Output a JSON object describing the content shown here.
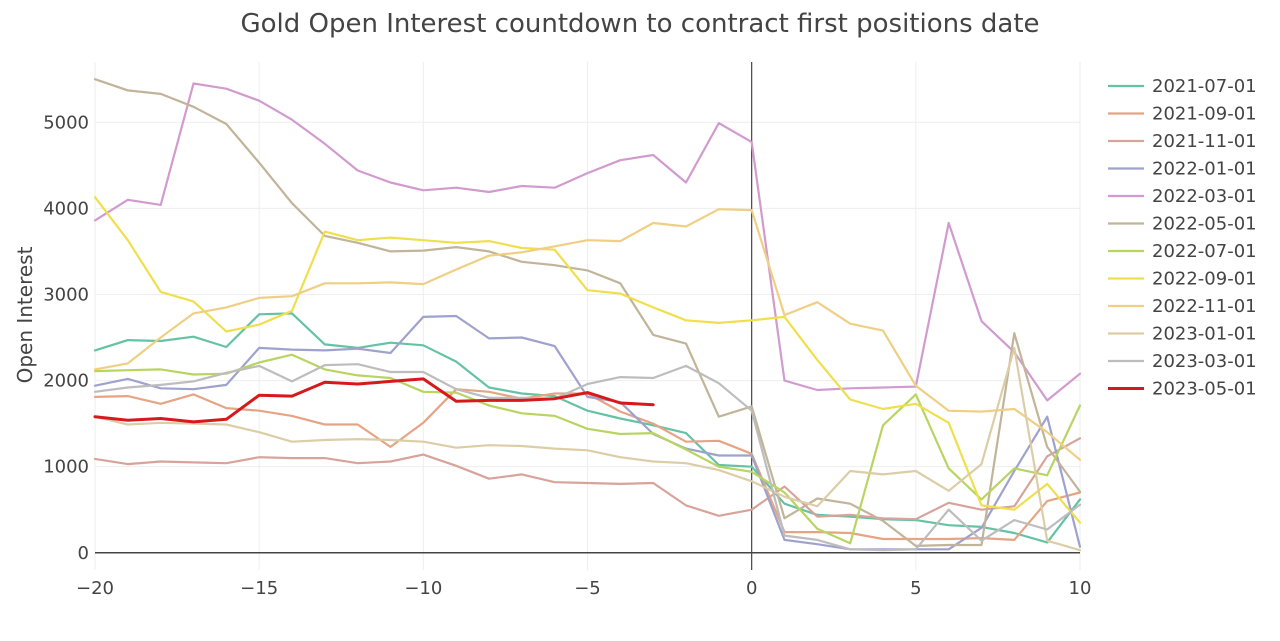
{
  "chart_data": {
    "type": "line",
    "title": "Gold Open Interest countdown to contract first positions date",
    "xlabel": "",
    "ylabel": "Open Interest",
    "xlim": [
      -20,
      10
    ],
    "ylim": [
      -200,
      5700
    ],
    "x_ticks": [
      -20,
      -15,
      -10,
      -5,
      0,
      5,
      10
    ],
    "x_tick_labels": [
      "−20",
      "−15",
      "−10",
      "−5",
      "0",
      "5",
      "10"
    ],
    "y_ticks": [
      0,
      1000,
      2000,
      3000,
      4000,
      5000
    ],
    "y_tick_labels": [
      "0",
      "1000",
      "2000",
      "3000",
      "4000",
      "5000"
    ],
    "grid": true,
    "legend_position": "right",
    "x": [
      -20,
      -19,
      -18,
      -17,
      -16,
      -15,
      -14,
      -13,
      -12,
      -11,
      -10,
      -9,
      -8,
      -7,
      -6,
      -5,
      -4,
      -3,
      -2,
      -1,
      0,
      1,
      2,
      3,
      4,
      5,
      6,
      7,
      8,
      9,
      10
    ],
    "series": [
      {
        "name": "2021-07-01",
        "color": "#66c2a5",
        "values": [
          2350,
          2470,
          2460,
          2510,
          2390,
          2770,
          2780,
          2420,
          2380,
          2440,
          2410,
          2220,
          1920,
          1850,
          1820,
          1650,
          1560,
          1480,
          1390,
          1020,
          1000,
          570,
          440,
          420,
          390,
          380,
          320,
          300,
          230,
          120,
          620
        ]
      },
      {
        "name": "2021-09-01",
        "color": "#e5a584",
        "values": [
          1810,
          1820,
          1730,
          1840,
          1680,
          1650,
          1590,
          1490,
          1490,
          1230,
          1510,
          1900,
          1870,
          1790,
          1850,
          1850,
          1640,
          1500,
          1290,
          1300,
          1150,
          240,
          240,
          230,
          160,
          160,
          160,
          170,
          150,
          600,
          700
        ]
      },
      {
        "name": "2021-11-01",
        "color": "#d7a39a",
        "values": [
          1090,
          1030,
          1060,
          1050,
          1040,
          1110,
          1100,
          1100,
          1040,
          1060,
          1140,
          1010,
          860,
          910,
          820,
          810,
          800,
          810,
          550,
          430,
          500,
          770,
          420,
          440,
          400,
          390,
          580,
          500,
          540,
          1120,
          1330
        ]
      },
      {
        "name": "2022-01-01",
        "color": "#9ea2cc",
        "values": [
          1940,
          2020,
          1910,
          1900,
          1950,
          2380,
          2360,
          2350,
          2370,
          2320,
          2740,
          2750,
          2490,
          2500,
          2400,
          1810,
          1750,
          1380,
          1210,
          1130,
          1130,
          150,
          100,
          40,
          40,
          40,
          40,
          290,
          950,
          1580,
          70
        ]
      },
      {
        "name": "2022-03-01",
        "color": "#d19bcf",
        "values": [
          3860,
          4100,
          4040,
          5450,
          5390,
          5250,
          5030,
          4750,
          4440,
          4300,
          4210,
          4240,
          4190,
          4260,
          4240,
          4410,
          4560,
          4620,
          4300,
          4990,
          4770,
          2000,
          1890,
          1910,
          1920,
          1930,
          3830,
          2690,
          2330,
          1770,
          2080
        ]
      },
      {
        "name": "2022-05-01",
        "color": "#c1b499",
        "values": [
          5500,
          5370,
          5330,
          5180,
          4980,
          4530,
          4060,
          3680,
          3600,
          3500,
          3510,
          3550,
          3500,
          3380,
          3340,
          3280,
          3130,
          2530,
          2430,
          1580,
          1700,
          400,
          630,
          570,
          370,
          80,
          90,
          90,
          2550,
          1230,
          710
        ]
      },
      {
        "name": "2022-07-01",
        "color": "#b8d561",
        "values": [
          2110,
          2120,
          2130,
          2070,
          2080,
          2210,
          2300,
          2130,
          2060,
          2030,
          1870,
          1860,
          1710,
          1620,
          1590,
          1440,
          1380,
          1390,
          1200,
          1000,
          940,
          700,
          280,
          110,
          1480,
          1840,
          980,
          620,
          980,
          900,
          1710
        ]
      },
      {
        "name": "2022-09-01",
        "color": "#f0df4c",
        "values": [
          4130,
          3630,
          3030,
          2920,
          2570,
          2650,
          2810,
          3730,
          3630,
          3660,
          3630,
          3600,
          3620,
          3540,
          3520,
          3050,
          3010,
          2850,
          2700,
          2670,
          2700,
          2740,
          2240,
          1780,
          1670,
          1730,
          1510,
          550,
          500,
          800,
          350
        ]
      },
      {
        "name": "2022-11-01",
        "color": "#efcf83",
        "values": [
          2130,
          2200,
          2500,
          2780,
          2850,
          2960,
          2980,
          3130,
          3130,
          3140,
          3120,
          3290,
          3450,
          3490,
          3560,
          3630,
          3620,
          3830,
          3790,
          3990,
          3980,
          2760,
          2910,
          2660,
          2580,
          1940,
          1650,
          1640,
          1670,
          1400,
          1080
        ]
      },
      {
        "name": "2023-01-01",
        "color": "#ddcda7",
        "values": [
          1580,
          1490,
          1510,
          1500,
          1490,
          1400,
          1290,
          1310,
          1320,
          1310,
          1290,
          1220,
          1250,
          1240,
          1210,
          1190,
          1110,
          1060,
          1040,
          960,
          830,
          650,
          540,
          950,
          910,
          950,
          720,
          1030,
          2380,
          140,
          30
        ]
      },
      {
        "name": "2023-03-01",
        "color": "#bdbdbd",
        "values": [
          1870,
          1920,
          1950,
          1990,
          2090,
          2170,
          1990,
          2180,
          2190,
          2100,
          2100,
          1900,
          1800,
          1800,
          1790,
          1960,
          2040,
          2030,
          2170,
          1970,
          1650,
          200,
          150,
          40,
          30,
          40,
          500,
          140,
          380,
          270,
          560
        ]
      },
      {
        "name": "2023-05-01",
        "color": "#d7191c",
        "width": 3,
        "values": [
          1580,
          1540,
          1560,
          1520,
          1550,
          1830,
          1820,
          1980,
          1960,
          1990,
          2020,
          1760,
          1770,
          1770,
          1790,
          1860,
          1740,
          1720,
          null,
          null,
          null,
          null,
          null,
          null,
          null,
          null,
          null,
          null,
          null,
          null,
          null
        ]
      }
    ]
  }
}
